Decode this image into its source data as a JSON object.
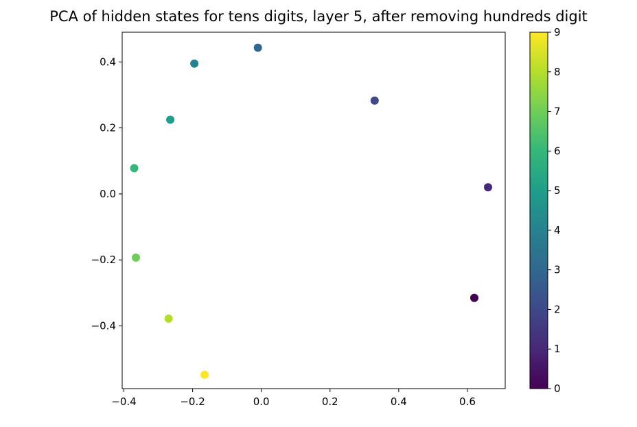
{
  "chart_data": {
    "type": "scatter",
    "title": "PCA of hidden states for tens digits, layer 5, after removing hundreds digit",
    "xlabel": "",
    "ylabel": "",
    "xlim": [
      -0.405,
      0.71
    ],
    "ylim": [
      -0.59,
      0.49
    ],
    "xticks": [
      -0.4,
      -0.2,
      0.0,
      0.2,
      0.4,
      0.6
    ],
    "xtick_labels": [
      "−0.4",
      "−0.2",
      "0.0",
      "0.2",
      "0.4",
      "0.6"
    ],
    "yticks": [
      -0.4,
      -0.2,
      0.0,
      0.2,
      0.4
    ],
    "ytick_labels": [
      "−0.4",
      "−0.2",
      "0.0",
      "0.2",
      "0.4"
    ],
    "grid": false,
    "colormap": "viridis",
    "colorbar": {
      "range": [
        0,
        9
      ],
      "ticks": [
        0,
        1,
        2,
        3,
        4,
        5,
        6,
        7,
        8,
        9
      ],
      "tick_labels": [
        "0",
        "1",
        "2",
        "3",
        "4",
        "5",
        "6",
        "7",
        "8",
        "9"
      ]
    },
    "points": [
      {
        "x": 0.62,
        "y": -0.315,
        "c": 0
      },
      {
        "x": 0.66,
        "y": 0.02,
        "c": 1
      },
      {
        "x": 0.33,
        "y": 0.283,
        "c": 2
      },
      {
        "x": -0.01,
        "y": 0.443,
        "c": 3
      },
      {
        "x": -0.195,
        "y": 0.395,
        "c": 4
      },
      {
        "x": -0.265,
        "y": 0.225,
        "c": 5
      },
      {
        "x": -0.37,
        "y": 0.078,
        "c": 6
      },
      {
        "x": -0.365,
        "y": -0.193,
        "c": 7
      },
      {
        "x": -0.27,
        "y": -0.378,
        "c": 8
      },
      {
        "x": -0.165,
        "y": -0.548,
        "c": 9
      }
    ],
    "colors": [
      "#440154",
      "#482878",
      "#3e4989",
      "#31688e",
      "#26828e",
      "#1f9e89",
      "#35b779",
      "#6ece58",
      "#b5de2b",
      "#fde725"
    ]
  }
}
